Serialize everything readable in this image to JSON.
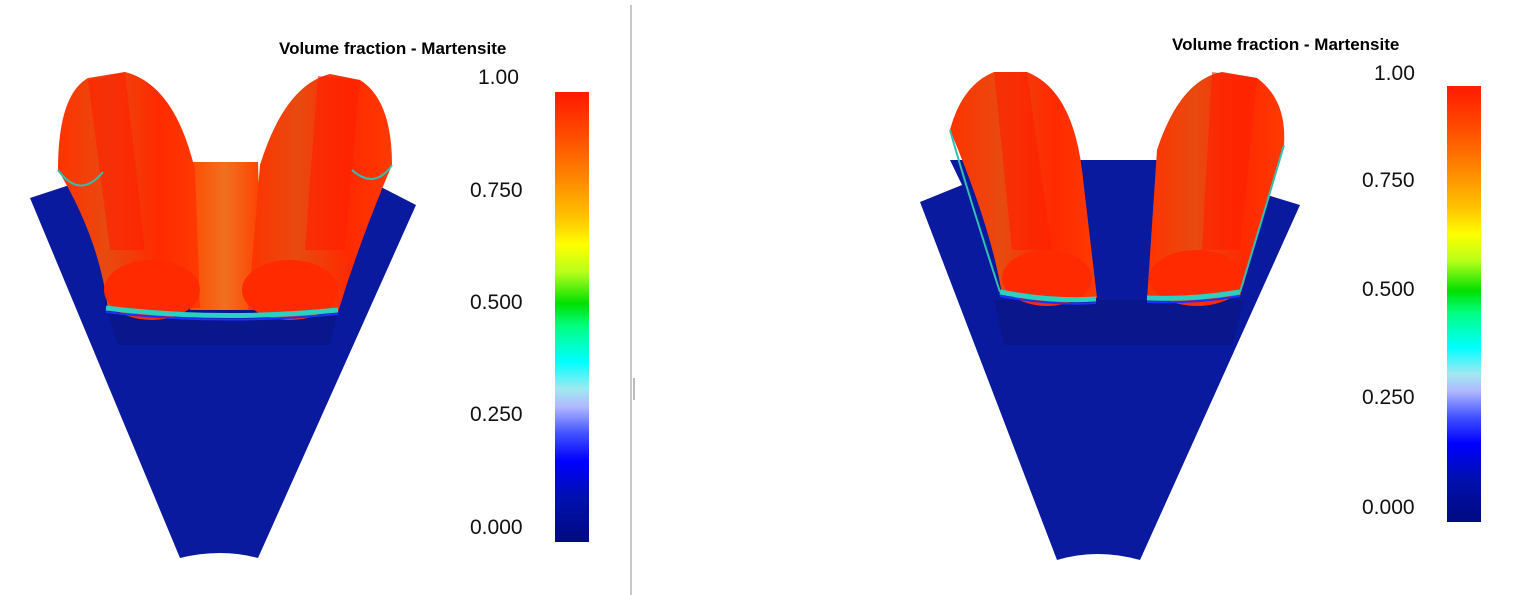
{
  "left_panel": {
    "legend": {
      "title": "Volume fraction - Martensite",
      "ticks": [
        "1.00",
        "0.750",
        "0.500",
        "0.250",
        "0.000"
      ]
    }
  },
  "right_panel": {
    "legend": {
      "title": "Volume fraction - Martensite",
      "ticks": [
        "1.00",
        "0.750",
        "0.500",
        "0.250",
        "0.000"
      ]
    }
  },
  "colors": {
    "hardened": "#ff2a00",
    "core": "#0a1a9e",
    "background": "#ffffff"
  }
}
